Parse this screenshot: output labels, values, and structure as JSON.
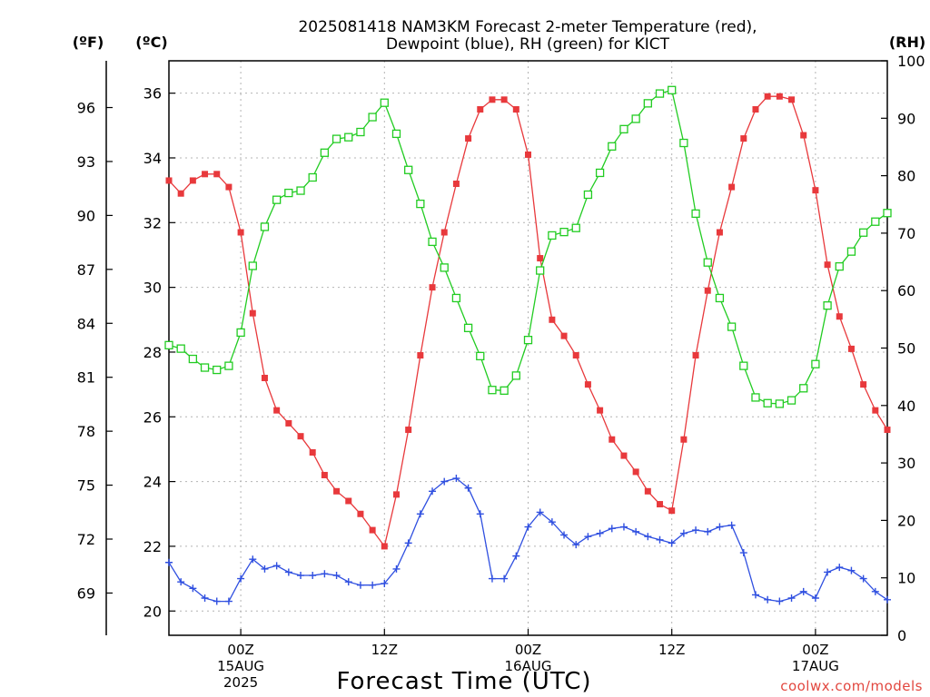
{
  "title_line1": "2025081418 NAM3KM Forecast 2-meter Temperature (red),",
  "title_line2": "Dewpoint (blue), RH (green) for KICT",
  "unit_f": "(ºF)",
  "unit_c": "(ºC)",
  "unit_rh": "(RH)",
  "xlabel": "Forecast Time (UTC)",
  "credit": "coolwx.com/models",
  "colors": {
    "temperature": "#e8393c",
    "dewpoint": "#2f4fe0",
    "rh": "#22cc22",
    "grid": "#b4b4b4",
    "credit": "#e2473f"
  },
  "chart_data": {
    "type": "line",
    "x": {
      "start": "2025-08-14T18Z",
      "step_hours": 1,
      "count": 61
    },
    "x_ticks": [
      {
        "line1": "00Z",
        "line2": "15AUG",
        "line3": "2025"
      },
      {
        "line1": "12Z",
        "line2": "",
        "line3": ""
      },
      {
        "line1": "00Z",
        "line2": "16AUG",
        "line3": ""
      },
      {
        "line1": "12Z",
        "line2": "",
        "line3": ""
      },
      {
        "line1": "00Z",
        "line2": "17AUG",
        "line3": ""
      }
    ],
    "y_left_c": {
      "range": [
        19.25,
        37.0
      ],
      "ticks": [
        "20",
        "22",
        "24",
        "26",
        "28",
        "30",
        "32",
        "34",
        "36"
      ]
    },
    "y_left_f": {
      "ticks": [
        "69",
        "72",
        "75",
        "78",
        "81",
        "84",
        "87",
        "90",
        "93",
        "96"
      ]
    },
    "y_right_rh": {
      "range": [
        0,
        100
      ],
      "ticks": [
        "0",
        "10",
        "20",
        "30",
        "40",
        "50",
        "60",
        "70",
        "80",
        "90",
        "100"
      ]
    },
    "grid": true,
    "series": [
      {
        "name": "Temperature",
        "unit": "C",
        "values": [
          33.3,
          32.9,
          33.3,
          33.5,
          33.5,
          33.1,
          31.7,
          29.2,
          27.2,
          26.2,
          25.8,
          25.4,
          24.9,
          24.2,
          23.7,
          23.4,
          23.0,
          22.5,
          22.0,
          23.6,
          25.6,
          27.9,
          30.0,
          31.7,
          33.2,
          34.6,
          35.5,
          35.8,
          35.8,
          35.5,
          34.1,
          30.9,
          29.0,
          28.5,
          27.9,
          27.0,
          26.2,
          25.3,
          24.8,
          24.3,
          23.7,
          23.3,
          23.1,
          25.3,
          27.9,
          29.9,
          31.7,
          33.1,
          34.6,
          35.5,
          35.9,
          35.9,
          35.8,
          34.7,
          33.0,
          30.7,
          29.1,
          28.1,
          27.0,
          26.2,
          25.6
        ]
      },
      {
        "name": "Dewpoint",
        "unit": "C",
        "values": [
          21.5,
          20.9,
          20.7,
          20.4,
          20.3,
          20.3,
          21.0,
          21.6,
          21.3,
          21.4,
          21.2,
          21.1,
          21.1,
          21.15,
          21.1,
          20.9,
          20.8,
          20.8,
          20.85,
          21.3,
          22.1,
          23.0,
          23.7,
          24.0,
          24.1,
          23.8,
          23.0,
          21.0,
          21.0,
          21.7,
          22.6,
          23.05,
          22.75,
          22.35,
          22.05,
          22.3,
          22.4,
          22.55,
          22.6,
          22.45,
          22.3,
          22.2,
          22.1,
          22.4,
          22.5,
          22.45,
          22.6,
          22.65,
          21.8,
          20.5,
          20.35,
          20.3,
          20.4,
          20.6,
          20.4,
          21.2,
          21.35,
          21.25,
          21.0,
          20.6,
          20.35
        ]
      },
      {
        "name": "RH",
        "unit": "%",
        "values": [
          50.5,
          49.9,
          48.1,
          46.6,
          46.2,
          46.9,
          52.7,
          64.3,
          71.1,
          75.8,
          77.0,
          77.4,
          79.7,
          84.0,
          86.4,
          86.7,
          87.6,
          90.2,
          92.7,
          87.3,
          81.0,
          75.1,
          68.5,
          64.0,
          58.7,
          53.5,
          48.6,
          42.7,
          42.6,
          45.2,
          51.4,
          63.5,
          69.6,
          70.2,
          70.9,
          76.7,
          80.5,
          85.1,
          88.1,
          89.9,
          92.6,
          94.3,
          94.9,
          85.7,
          73.4,
          64.9,
          58.7,
          53.7,
          46.9,
          41.4,
          40.4,
          40.3,
          40.9,
          43.0,
          47.2,
          57.4,
          64.2,
          66.8,
          70.1,
          72.0,
          73.5
        ]
      }
    ]
  }
}
